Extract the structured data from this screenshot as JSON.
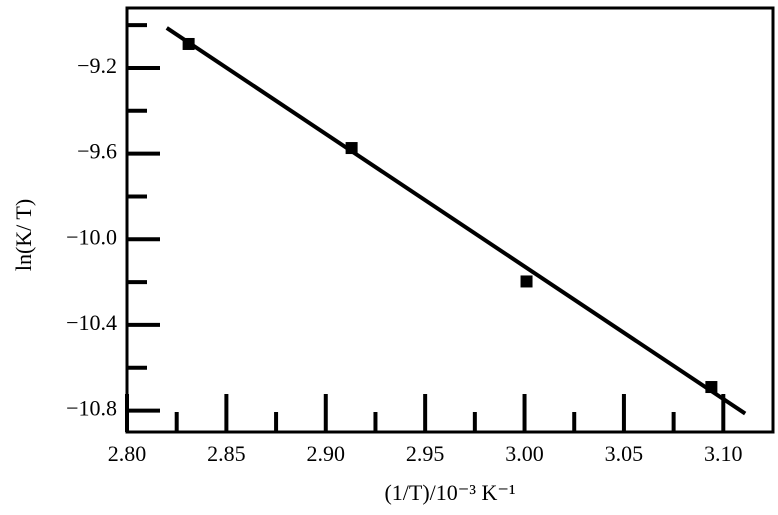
{
  "chart_data": {
    "type": "scatter",
    "xlabel": "(1/T)/10⁻³ K⁻¹",
    "ylabel": "ln(K/ T)",
    "series": [
      {
        "color": "#000000",
        "x": [
          2.831,
          2.913,
          3.001,
          3.094
        ],
        "values": [
          -9.088,
          -9.574,
          -10.197,
          -10.69
        ]
      }
    ],
    "fit": {
      "color": "#000000",
      "x": [
        2.82,
        3.111
      ],
      "values": [
        -9.013,
        -10.814
      ]
    },
    "xlim": [
      2.8,
      3.125
    ],
    "ylim": [
      -10.9,
      -8.92
    ],
    "xticks": [
      {
        "value": 2.8,
        "label": "2.80"
      },
      2.85,
      {
        "value": 2.9,
        "label": "2.90"
      },
      2.95,
      {
        "value": 3.0,
        "label": "3.00"
      },
      3.05,
      {
        "value": 3.1,
        "label": "3.10"
      }
    ],
    "xminor": [
      2.825,
      2.875,
      2.925,
      2.975,
      3.025,
      3.075
    ],
    "yticks": [
      {
        "value": -9.2,
        "label": "−9.2"
      },
      {
        "value": -9.6,
        "label": "−9.6"
      },
      {
        "value": -10.0,
        "label": "−10.0"
      },
      {
        "value": -10.4,
        "label": "−10.4"
      },
      {
        "value": -10.8,
        "label": "−10.8"
      }
    ],
    "yminor": [
      -9.0,
      -9.4,
      -9.8,
      -10.2,
      -10.6
    ]
  }
}
